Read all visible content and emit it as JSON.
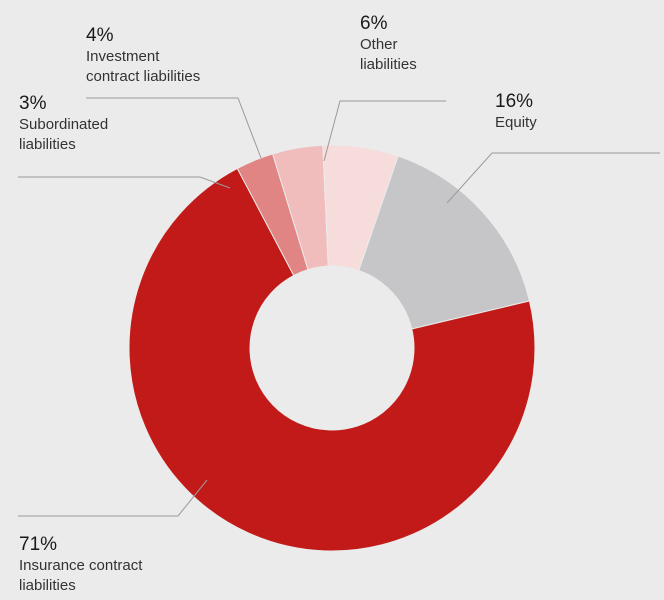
{
  "chart_data": {
    "type": "pie",
    "variant": "donut",
    "title": "",
    "categories": [
      "Equity",
      "Insurance contract\nliabilities",
      "Subordinated\nliabilities",
      "Investment\ncontract liabilities",
      "Other\nliabilities"
    ],
    "values": [
      16,
      71,
      3,
      4,
      6
    ],
    "labels": [
      "16%",
      "71%",
      "3%",
      "4%",
      "6%"
    ],
    "colors": [
      "#c6c6c8",
      "#c21a18",
      "#e08584",
      "#f0bcbc",
      "#f7dcdc"
    ],
    "legend": "none",
    "label_placement": "outside with leader lines"
  },
  "style": {
    "background": "#ebebeb",
    "leader_line_color": "#9a9a9a"
  }
}
